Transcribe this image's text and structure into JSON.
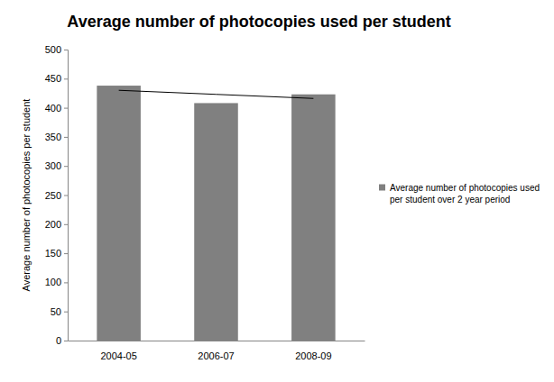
{
  "chart_data": {
    "type": "bar",
    "title": "Average number of photocopies used per student",
    "y_label": "Average number of photocopies per student",
    "categories": [
      "2004-05",
      "2006-07",
      "2008-09"
    ],
    "series": [
      {
        "name": "Average number of photocopies used per student over 2 year period",
        "type": "bar",
        "color": "#808080",
        "values": [
          438,
          408,
          423
        ]
      },
      {
        "type": "line",
        "color": "#000000",
        "values": [
          430,
          423,
          416
        ]
      }
    ],
    "ylim": [
      0,
      500
    ],
    "yticks": [
      0,
      50,
      100,
      150,
      200,
      250,
      300,
      350,
      400,
      450,
      500
    ],
    "grid": false,
    "legend": "right"
  }
}
